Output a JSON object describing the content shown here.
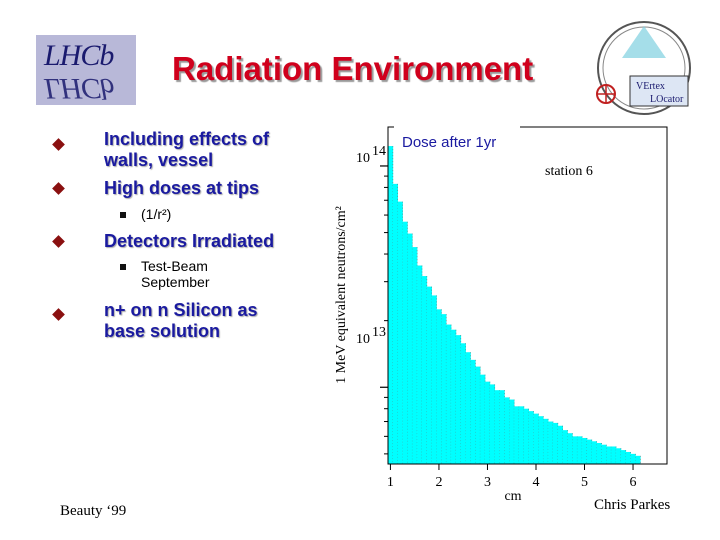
{
  "title": "Radiation Environment",
  "logos": {
    "left_text": "LHCb",
    "right_text_1": "VErtex",
    "right_text_2": "LOcator"
  },
  "bullets": [
    {
      "text_line1": "Including effects of",
      "text_line2": "walls, vessel"
    },
    {
      "text": "High doses at tips"
    },
    {
      "sub": "(1/r²)"
    },
    {
      "text": "Detectors Irradiated"
    },
    {
      "sub_line1": "Test-Beam",
      "sub_line2": "September"
    },
    {
      "text_line1": "n+ on n Silicon as",
      "text_line2": "base solution"
    }
  ],
  "footer": {
    "left": "Beauty ‘99",
    "right": "Chris Parkes"
  },
  "colors": {
    "title": "#d0001c",
    "bullet_text": "#1a1aa0",
    "bars": "#00ffff",
    "diamond": "#8a1010"
  },
  "chart_data": {
    "type": "bar",
    "title": "Dose after 1yr",
    "annotation": "station 6",
    "xlabel": "cm",
    "ylabel": "1 MeV equivalent neutrons/cm²",
    "x_ticks": [
      "1",
      "2",
      "3",
      "4",
      "5",
      "6"
    ],
    "y_ticks": [
      {
        "label": "10",
        "exp": "14",
        "value": 100000000000000.0
      },
      {
        "label": "10",
        "exp": "13",
        "value": 10000000000000.0
      }
    ],
    "xlim": [
      0.95,
      6.7
    ],
    "ylim": [
      4500000000000.0,
      150000000000000.0
    ],
    "ylog": true,
    "bin_width": 0.1,
    "x_start": 0.95,
    "values": [
      123000000000000.0,
      83000000000000.0,
      69000000000000.0,
      56000000000000.0,
      49500000000000.0,
      43000000000000.0,
      35500000000000.0,
      31800000000000.0,
      28500000000000.0,
      26000000000000.0,
      22500000000000.0,
      21400000000000.0,
      19200000000000.0,
      18200000000000.0,
      17200000000000.0,
      15800000000000.0,
      14400000000000.0,
      13300000000000.0,
      12400000000000.0,
      11400000000000.0,
      10600000000000.0,
      10300000000000.0,
      9700000000000.0,
      9700000000000.0,
      9000000000000.0,
      8800000000000.0,
      8200000000000.0,
      8200000000000.0,
      8000000000000.0,
      7800000000000.0,
      7600000000000.0,
      7400000000000.0,
      7200000000000.0,
      7000000000000.0,
      6900000000000.0,
      6700000000000.0,
      6400000000000.0,
      6200000000000.0,
      6000000000000.0,
      6000000000000.0,
      5900000000000.0,
      5800000000000.0,
      5700000000000.0,
      5600000000000.0,
      5500000000000.0,
      5400000000000.0,
      5400000000000.0,
      5300000000000.0,
      5200000000000.0,
      5100000000000.0,
      5000000000000.0,
      4900000000000.0
    ]
  }
}
